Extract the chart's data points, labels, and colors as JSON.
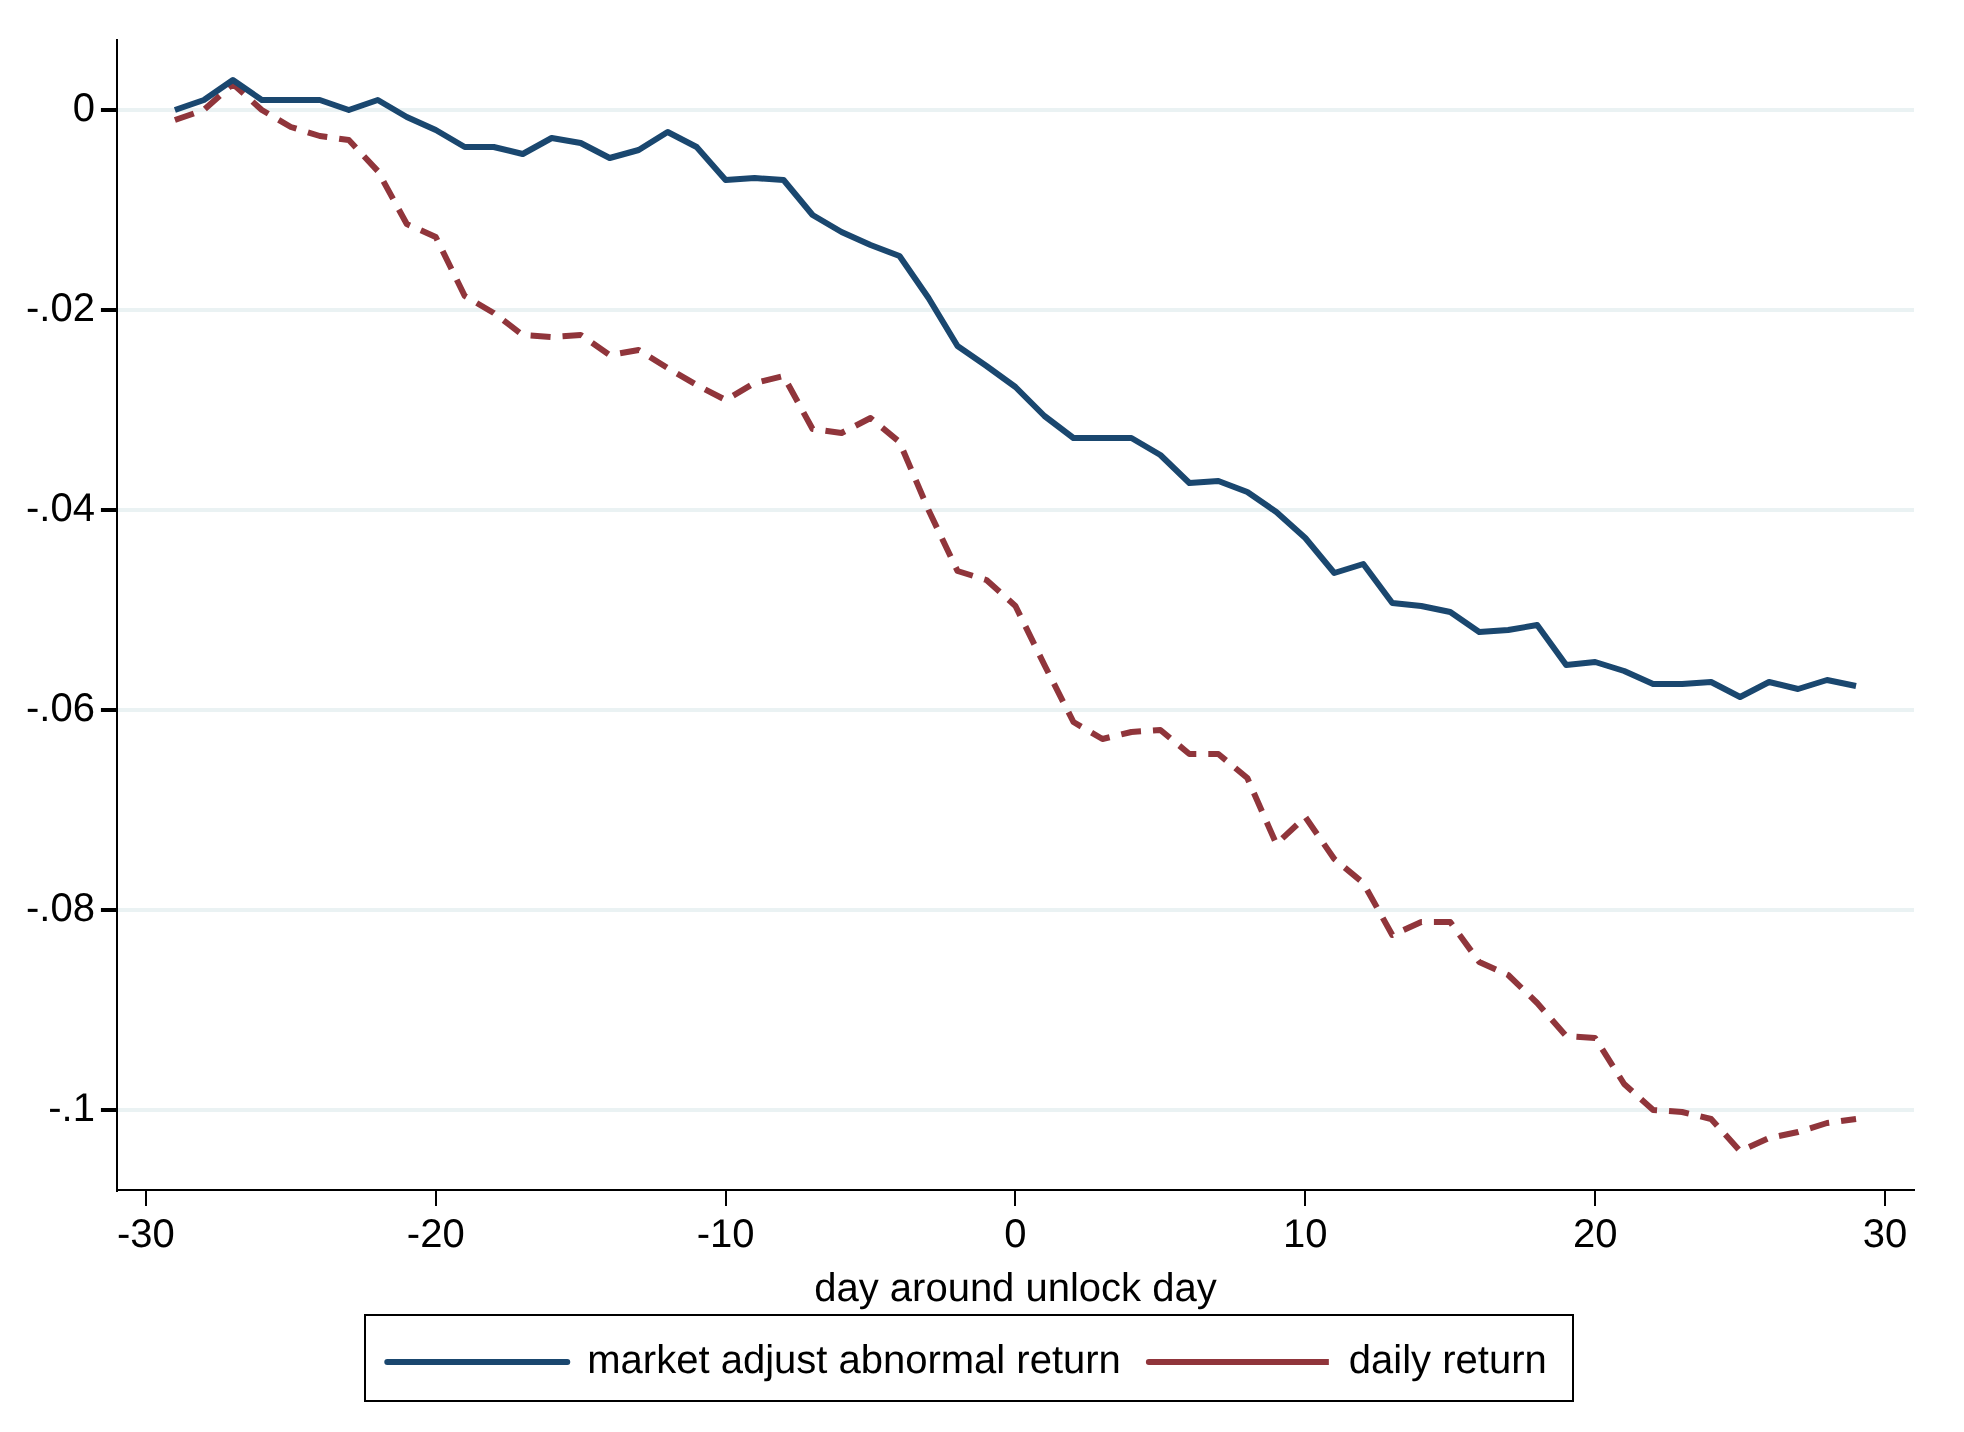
{
  "chart_data": {
    "type": "line",
    "xlabel": "day around unlock day",
    "x": [
      -29,
      -28,
      -27,
      -26,
      -25,
      -24,
      -23,
      -22,
      -21,
      -20,
      -19,
      -18,
      -17,
      -16,
      -15,
      -14,
      -13,
      -12,
      -11,
      -10,
      -9,
      -8,
      -7,
      -6,
      -5,
      -4,
      -3,
      -2,
      -1,
      0,
      1,
      2,
      3,
      4,
      5,
      6,
      7,
      8,
      9,
      10,
      11,
      12,
      13,
      14,
      15,
      16,
      17,
      18,
      19,
      20,
      21,
      22,
      23,
      24,
      25,
      26,
      27,
      28,
      29
    ],
    "series": [
      {
        "name": "market adjust abnormal return",
        "color": "#1a476f",
        "line_style": "solid",
        "values": [
          0,
          0.001,
          0.003,
          0.001,
          0.001,
          0.001,
          0,
          0.001,
          -0.0007,
          -0.002,
          -0.0037,
          -0.0037,
          -0.0044,
          -0.0028,
          -0.0033,
          -0.0048,
          -0.004,
          -0.0022,
          -0.0037,
          -0.007,
          -0.0068,
          -0.007,
          -0.0105,
          -0.0122,
          -0.0135,
          -0.0146,
          -0.0188,
          -0.0236,
          -0.0256,
          -0.0277,
          -0.0306,
          -0.0328,
          -0.0328,
          -0.0328,
          -0.0345,
          -0.0373,
          -0.0371,
          -0.0382,
          -0.0402,
          -0.0428,
          -0.0463,
          -0.0454,
          -0.0493,
          -0.0496,
          -0.0502,
          -0.0522,
          -0.052,
          -0.0515,
          -0.0555,
          -0.0552,
          -0.0561,
          -0.0574,
          -0.0574,
          -0.0572,
          -0.0587,
          -0.0572,
          -0.0579,
          -0.057,
          -0.0576
        ]
      },
      {
        "name": "daily return",
        "color": "#90353b",
        "line_style": "dashed",
        "values": [
          -0.001,
          0,
          0.0026,
          0,
          -0.0017,
          -0.0026,
          -0.003,
          -0.0061,
          -0.0114,
          -0.0127,
          -0.0186,
          -0.0203,
          -0.0225,
          -0.0227,
          -0.0225,
          -0.0245,
          -0.024,
          -0.0258,
          -0.0275,
          -0.029,
          -0.0273,
          -0.0266,
          -0.0319,
          -0.0323,
          -0.0308,
          -0.0332,
          -0.04,
          -0.0461,
          -0.047,
          -0.0496,
          -0.0555,
          -0.0612,
          -0.0629,
          -0.0622,
          -0.062,
          -0.0644,
          -0.0644,
          -0.0668,
          -0.0734,
          -0.0707,
          -0.0749,
          -0.0773,
          -0.0825,
          -0.0812,
          -0.0812,
          -0.0852,
          -0.0865,
          -0.0893,
          -0.0926,
          -0.0928,
          -0.0974,
          -0.1,
          -0.1002,
          -0.1009,
          -0.1041,
          -0.1028,
          -0.1022,
          -0.1013,
          -0.1009
        ]
      }
    ],
    "xlim": [
      -31,
      31
    ],
    "xticks": [
      -30,
      -20,
      -10,
      0,
      10,
      20,
      30
    ],
    "ylim": [
      -0.108,
      0.007
    ],
    "yticks": [
      {
        "value": 0,
        "label": "0"
      },
      {
        "value": -0.02,
        "label": "-.02"
      },
      {
        "value": -0.04,
        "label": "-.04"
      },
      {
        "value": -0.06,
        "label": "-.06"
      },
      {
        "value": -0.08,
        "label": "-.08"
      },
      {
        "value": -0.1,
        "label": "-.1"
      }
    ],
    "grid": "y",
    "legend": "bottom",
    "marker": "none"
  }
}
